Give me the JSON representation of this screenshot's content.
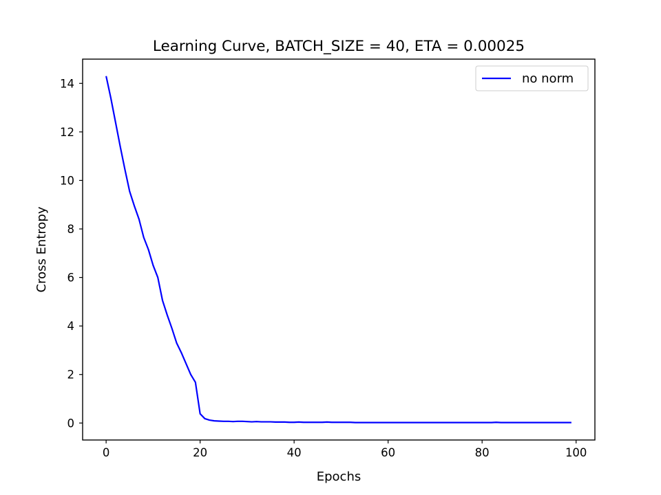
{
  "chart_data": {
    "type": "line",
    "title": "Learning Curve, BATCH_SIZE = 40, ETA = 0.00025",
    "xlabel": "Epochs",
    "ylabel": "Cross Entropy",
    "xlim": [
      -5,
      104
    ],
    "ylim": [
      -0.7,
      15
    ],
    "xticks": [
      0,
      20,
      40,
      60,
      80,
      100
    ],
    "yticks": [
      0,
      2,
      4,
      6,
      8,
      10,
      12,
      14
    ],
    "grid": false,
    "legend_position": "top-right",
    "series": [
      {
        "name": "no norm",
        "color": "#0000ff",
        "x": [
          0,
          1,
          2,
          3,
          4,
          5,
          6,
          7,
          8,
          9,
          10,
          11,
          12,
          13,
          14,
          15,
          16,
          17,
          18,
          19,
          20,
          21,
          22,
          23,
          24,
          25,
          26,
          27,
          28,
          29,
          30,
          31,
          32,
          33,
          34,
          35,
          36,
          37,
          38,
          39,
          40,
          41,
          42,
          43,
          44,
          45,
          46,
          47,
          48,
          49,
          50,
          51,
          52,
          53,
          54,
          55,
          56,
          57,
          58,
          59,
          60,
          61,
          62,
          63,
          64,
          65,
          66,
          67,
          68,
          69,
          70,
          71,
          72,
          73,
          74,
          75,
          76,
          77,
          78,
          79,
          80,
          81,
          82,
          83,
          84,
          85,
          86,
          87,
          88,
          89,
          90,
          91,
          92,
          93,
          94,
          95,
          96,
          97,
          98,
          99
        ],
        "y": [
          14.3,
          13.4,
          12.4,
          11.4,
          10.45,
          9.55,
          8.95,
          8.4,
          7.65,
          7.15,
          6.5,
          6.0,
          5.05,
          4.45,
          3.9,
          3.3,
          2.9,
          2.45,
          2.0,
          1.68,
          0.38,
          0.18,
          0.12,
          0.09,
          0.08,
          0.07,
          0.07,
          0.06,
          0.07,
          0.07,
          0.06,
          0.05,
          0.06,
          0.05,
          0.05,
          0.05,
          0.04,
          0.04,
          0.04,
          0.03,
          0.03,
          0.04,
          0.03,
          0.03,
          0.03,
          0.03,
          0.03,
          0.04,
          0.03,
          0.03,
          0.03,
          0.03,
          0.03,
          0.02,
          0.02,
          0.02,
          0.02,
          0.02,
          0.02,
          0.02,
          0.02,
          0.02,
          0.02,
          0.02,
          0.02,
          0.02,
          0.02,
          0.02,
          0.02,
          0.02,
          0.02,
          0.02,
          0.02,
          0.02,
          0.02,
          0.02,
          0.02,
          0.02,
          0.02,
          0.02,
          0.02,
          0.02,
          0.02,
          0.03,
          0.02,
          0.02,
          0.02,
          0.02,
          0.02,
          0.02,
          0.02,
          0.02,
          0.02,
          0.02,
          0.02,
          0.02,
          0.02,
          0.02,
          0.02,
          0.02
        ]
      }
    ]
  }
}
